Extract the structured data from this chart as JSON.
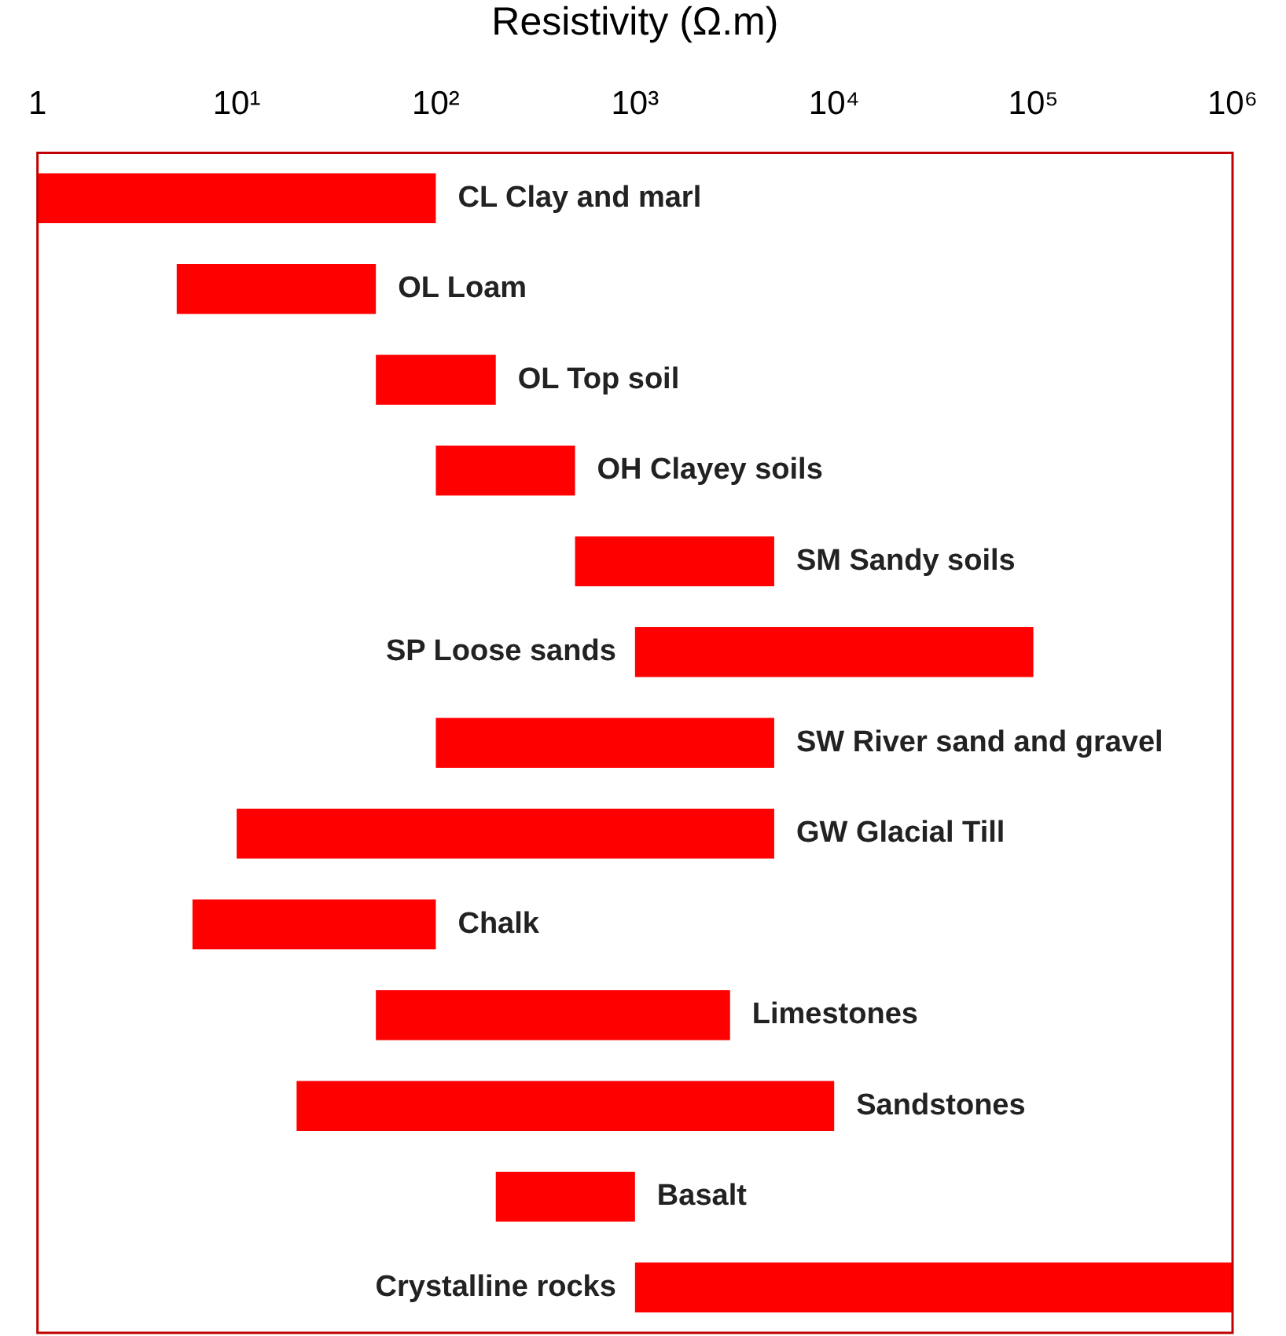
{
  "chart_data": {
    "type": "bar",
    "orientation": "horizontal",
    "xlabel": "Resistivity (Ω.m)",
    "log": "x",
    "grid": false,
    "legend": false,
    "tick_labels": "x",
    "categories": [
      "CL Clay and marl",
      "OL Loam",
      "OL Top soil",
      "OH Clayey soils",
      "SM Sandy soils",
      "SP Loose sands",
      "SW River sand and gravel",
      "GW Glacial Till",
      "Chalk",
      "Limestones",
      "Sandstones",
      "Basalt",
      "Crystalline rocks"
    ],
    "base": [
      1,
      5,
      50,
      100,
      500,
      1000,
      100,
      10,
      6,
      50,
      20,
      200,
      1000
    ],
    "values": [
      99,
      45,
      150,
      400,
      4500,
      99000,
      4900,
      4990,
      94,
      2950,
      9980,
      800,
      999000
    ],
    "color": "#ff0000",
    "xlim": [
      1,
      1000000
    ],
    "xticks": [
      1,
      {
        "value": 10,
        "label": "10¹"
      },
      {
        "value": 100,
        "label": "10²"
      },
      {
        "value": 1000,
        "label": "10³"
      },
      {
        "value": 10000,
        "label": "10⁴"
      },
      {
        "value": 100000,
        "label": "10⁵"
      },
      {
        "value": 1000000,
        "label": "10⁶"
      }
    ]
  }
}
